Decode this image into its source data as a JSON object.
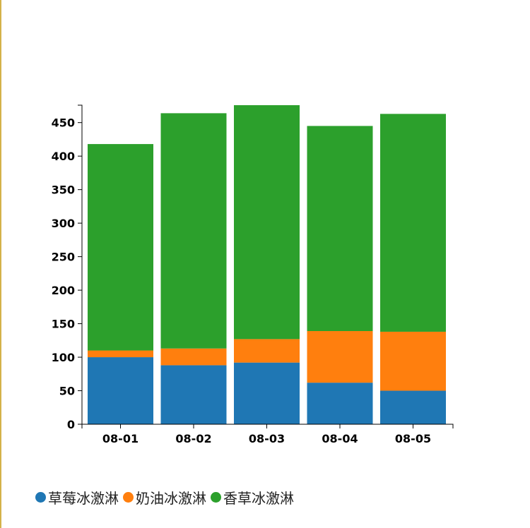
{
  "chart_data": {
    "type": "bar",
    "stacked": true,
    "categories": [
      "08-01",
      "08-02",
      "08-03",
      "08-04",
      "08-05"
    ],
    "series": [
      {
        "name": "草莓冰激淋",
        "color": "#1f77b4",
        "values": [
          100,
          88,
          92,
          62,
          50
        ]
      },
      {
        "name": "奶油冰激淋",
        "color": "#ff7f0e",
        "values": [
          10,
          25,
          35,
          77,
          88
        ]
      },
      {
        "name": "香草冰激淋",
        "color": "#2ca02c",
        "values": [
          308,
          351,
          349,
          306,
          325
        ]
      }
    ],
    "yticks": [
      0,
      50,
      100,
      150,
      200,
      250,
      300,
      350,
      400,
      450
    ],
    "ylim": [
      0,
      476
    ],
    "grid": false,
    "legend_position": "bottom-left"
  }
}
